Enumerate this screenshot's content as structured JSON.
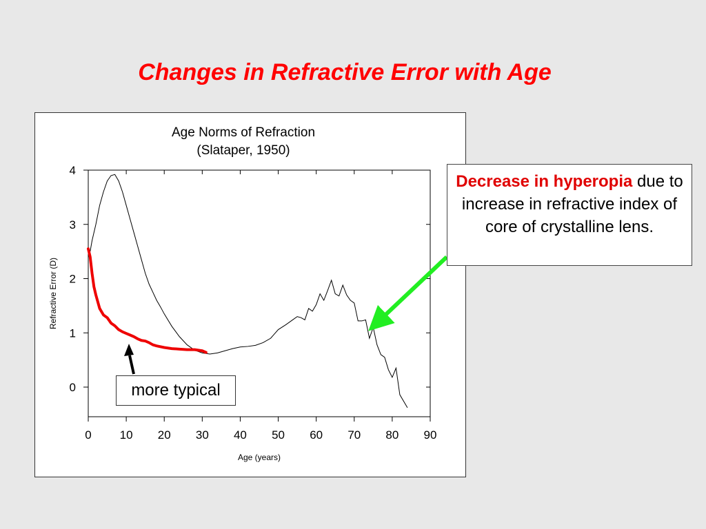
{
  "slide": {
    "title": "Changes in Refractive Error with Age"
  },
  "callout": {
    "highlight": "Decrease in hyperopia",
    "text": "due to increase in refractive index of core of crystalline lens."
  },
  "label_box": {
    "text": "more typical"
  },
  "colors": {
    "title": "#ff0000",
    "typical_curve": "#ee0000",
    "green_arrow": "#22ee22",
    "black_arrow": "#000000",
    "background": "#e8e8e8"
  },
  "chart_data": {
    "type": "line",
    "title": "Age Norms of Refraction",
    "subtitle": "(Slataper, 1950)",
    "xlabel": "Age (years)",
    "ylabel": "Refractive Error (D)",
    "xlim": [
      0,
      90
    ],
    "ylim": [
      -0.4,
      4
    ],
    "x_ticks": [
      "0",
      "10",
      "20",
      "30",
      "40",
      "50",
      "60",
      "70",
      "80",
      "90"
    ],
    "y_ticks": [
      "0",
      "1",
      "2",
      "3",
      "4"
    ],
    "grid": false,
    "series": [
      {
        "x": [
          0.5,
          1,
          2,
          3,
          4,
          5,
          6,
          7,
          8,
          9,
          10,
          11,
          12,
          13,
          14,
          15,
          16,
          17,
          18,
          19,
          20,
          22,
          24,
          26,
          28,
          30,
          32,
          34,
          36,
          38,
          40,
          42,
          44,
          46,
          48,
          49,
          50,
          52,
          54,
          55,
          56,
          57,
          58,
          59,
          60,
          61,
          62,
          63,
          64,
          65,
          66,
          67,
          68,
          69,
          70,
          71,
          72,
          73,
          74,
          75,
          76,
          77,
          78,
          79,
          80,
          81,
          82,
          84
        ],
        "y": [
          2.5,
          2.7,
          3.0,
          3.35,
          3.6,
          3.8,
          3.9,
          3.92,
          3.8,
          3.6,
          3.35,
          3.1,
          2.85,
          2.6,
          2.35,
          2.1,
          1.9,
          1.75,
          1.6,
          1.48,
          1.35,
          1.12,
          0.93,
          0.78,
          0.68,
          0.63,
          0.61,
          0.63,
          0.67,
          0.71,
          0.74,
          0.75,
          0.77,
          0.82,
          0.9,
          0.98,
          1.06,
          1.15,
          1.25,
          1.3,
          1.28,
          1.24,
          1.45,
          1.4,
          1.52,
          1.72,
          1.6,
          1.78,
          1.97,
          1.72,
          1.68,
          1.88,
          1.7,
          1.6,
          1.55,
          1.22,
          1.22,
          1.24,
          0.9,
          1.1,
          0.78,
          0.6,
          0.55,
          0.32,
          0.18,
          0.35,
          -0.14,
          -0.38
        ]
      },
      {
        "x": [
          0,
          0.5,
          1,
          1.5,
          2,
          3,
          4,
          5,
          6,
          7,
          8,
          9,
          10,
          11,
          12,
          13,
          14,
          15,
          16,
          17,
          18,
          20,
          22,
          24,
          26,
          28,
          30,
          31
        ],
        "y": [
          2.55,
          2.4,
          2.1,
          1.85,
          1.7,
          1.45,
          1.33,
          1.28,
          1.18,
          1.13,
          1.06,
          1.02,
          0.99,
          0.96,
          0.93,
          0.89,
          0.86,
          0.85,
          0.82,
          0.78,
          0.76,
          0.73,
          0.71,
          0.7,
          0.69,
          0.69,
          0.67,
          0.64
        ]
      }
    ]
  }
}
